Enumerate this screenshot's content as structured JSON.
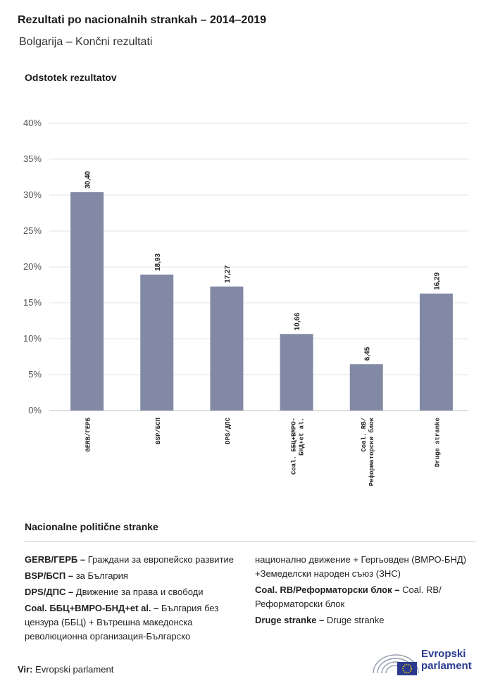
{
  "header": {
    "title": "Rezultati po nacionalnih strankah – 2014–2019",
    "subtitle": "Bolgarija – Končni rezultati"
  },
  "chart_data": {
    "type": "bar",
    "ylabel": "Odstotek rezultatov",
    "categories": [
      "GERB/ГЕРБ",
      "BSP/БСП",
      "DPS/ДПС",
      "Coal. ББЦ+ВМРО-БНД+et al.",
      "Coal. RB/Реформаторски блок",
      "Druge stranke"
    ],
    "category_labels": [
      [
        "GERB/ГЕРБ"
      ],
      [
        "BSP/БСП"
      ],
      [
        "DPS/ДПС"
      ],
      [
        "Coal. ББЦ+ВМРО-",
        "БНД+et al."
      ],
      [
        "Coal. RB/",
        "Реформаторски блок"
      ],
      [
        "Druge stranke"
      ]
    ],
    "values": [
      30.4,
      18.93,
      17.27,
      10.66,
      6.45,
      16.29
    ],
    "value_labels": [
      "30,40",
      "18,93",
      "17,27",
      "10,66",
      "6,45",
      "16,29"
    ],
    "ylim": [
      0,
      40
    ],
    "yticks": [
      0,
      5,
      10,
      15,
      20,
      25,
      30,
      35,
      40
    ],
    "ytick_labels": [
      "0%",
      "5%",
      "10%",
      "15%",
      "20%",
      "25%",
      "30%",
      "35%",
      "40%"
    ],
    "bar_color": "#8189a5",
    "grid": true
  },
  "legend": {
    "title": "Nacionalne politične stranke",
    "left": [
      {
        "key": "GERB/ГЕРБ –",
        "text": " Граждани за европейско развитие"
      },
      {
        "key": "BSP/БСП –",
        "text": " за България"
      },
      {
        "key": "DPS/ДПС –",
        "text": " Движение за права и свободи"
      },
      {
        "key": "Coal. ББЦ+ВМРО-БНД+et al. –",
        "text": "  България без цензура (ББЦ) + Вътрешна македонска революционна организация-Българско"
      }
    ],
    "right": [
      {
        "key": "",
        "text": "национално движение + Гергьовден (ВМРО-БНД) +Земеделски народен съюз (ЗНС)"
      },
      {
        "key": "Coal. RB/Реформаторски блок –",
        "text": " Coal. RB/ Реформаторски блок"
      },
      {
        "key": "Druge stranke –",
        "text": " Druge stranke"
      }
    ]
  },
  "footer": {
    "source_label": "Vir:",
    "source_text": " Evropski parlament",
    "logo_line1": "Evropski",
    "logo_line2": "parlament"
  }
}
